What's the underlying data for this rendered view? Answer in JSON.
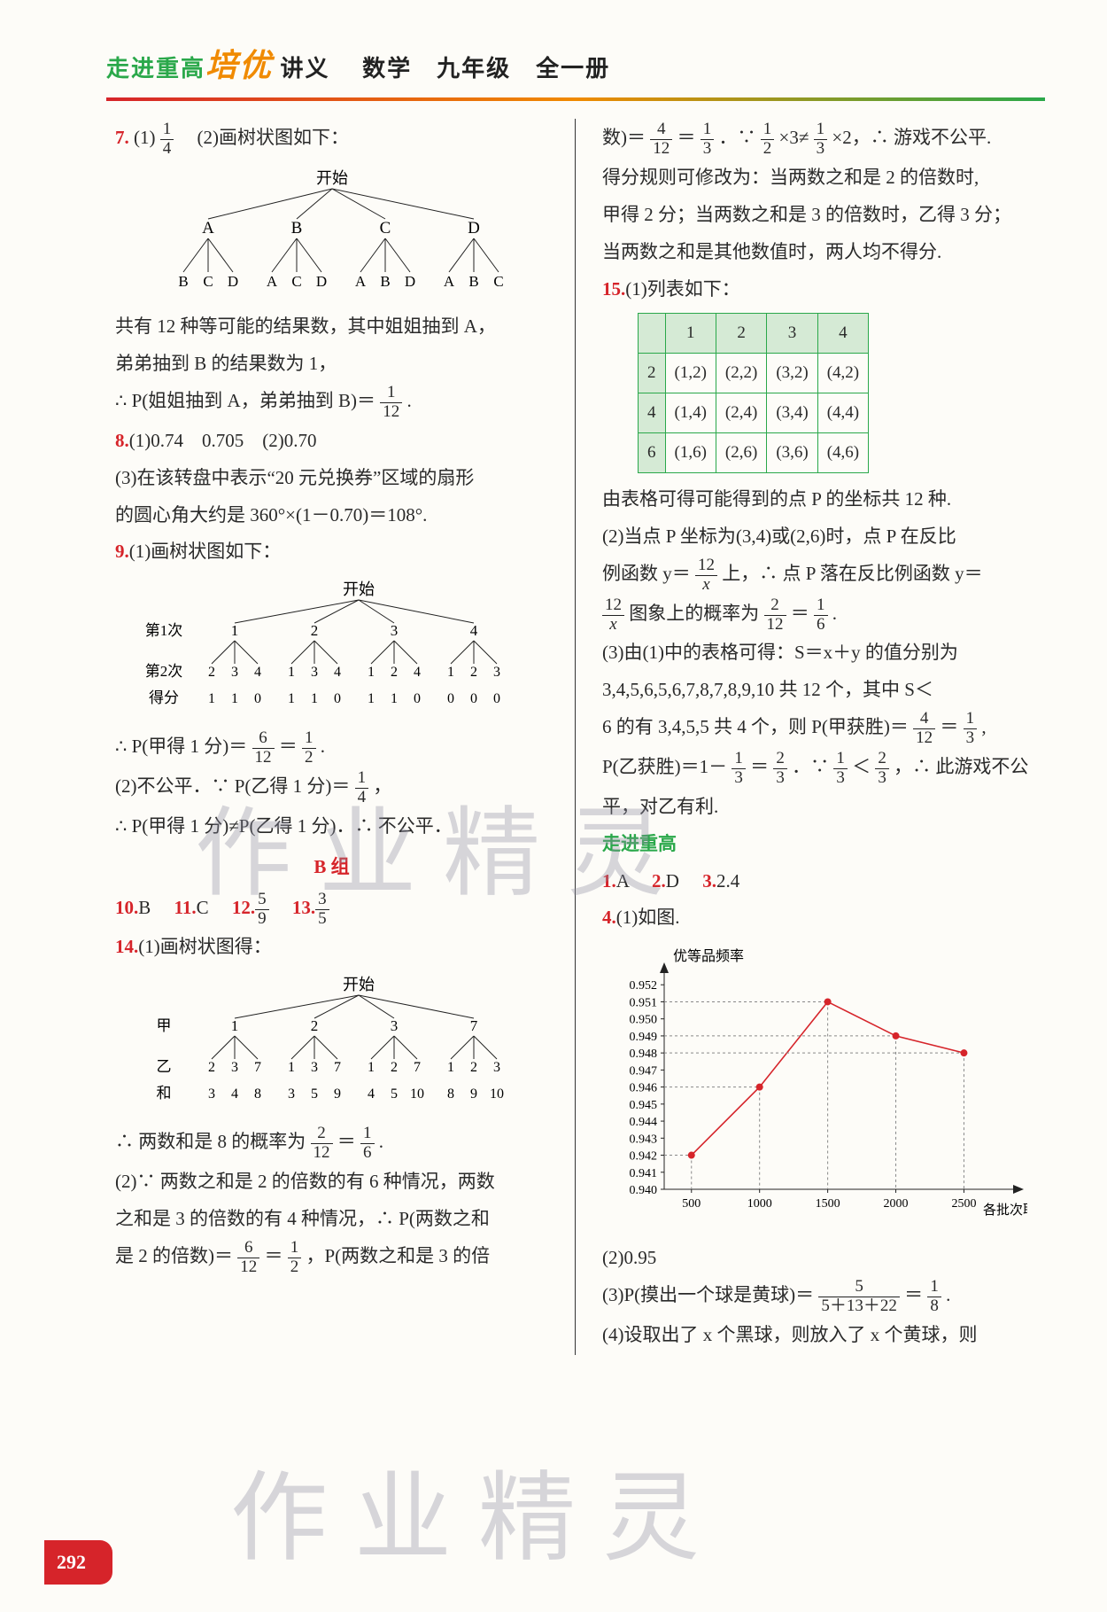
{
  "header": {
    "brand1": "走进重高",
    "brand2": "培优",
    "brand3": "讲义",
    "subject": "数学　九年级　全一册"
  },
  "left": {
    "q7": {
      "num": "7.",
      "p1": "(1)",
      "frac1": {
        "n": "1",
        "d": "4"
      },
      "p2": "　(2)画树状图如下：",
      "tree_root": "开始",
      "tree_l1": [
        "A",
        "B",
        "C",
        "D"
      ],
      "tree_l2": [
        "B",
        "C",
        "D",
        "A",
        "C",
        "D",
        "A",
        "B",
        "D",
        "A",
        "B",
        "C"
      ],
      "t1": "共有 12 种等可能的结果数，其中姐姐抽到 A，",
      "t2": "弟弟抽到 B 的结果数为 1，",
      "t3": "∴ P(姐姐抽到 A，弟弟抽到 B)＝",
      "frac2": {
        "n": "1",
        "d": "12"
      },
      "t3b": "."
    },
    "q8": {
      "num": "8.",
      "p": "(1)0.74　0.705　(2)0.70",
      "t1": "(3)在该转盘中表示“20 元兑换券”区域的扇形",
      "t2": "的圆心角大约是 360°×(1－0.70)＝108°."
    },
    "q9": {
      "num": "9.",
      "p": "(1)画树状图如下：",
      "tree_root": "开始",
      "row1_label": "第1次",
      "row1": [
        "1",
        "2",
        "3",
        "4"
      ],
      "row2_label": "第2次",
      "row2": [
        "2",
        "3",
        "4",
        "1",
        "3",
        "4",
        "1",
        "2",
        "4",
        "1",
        "2",
        "3"
      ],
      "row3_label": "得分",
      "row3": [
        "1",
        "1",
        "0",
        "1",
        "1",
        "0",
        "1",
        "1",
        "0",
        "0",
        "0",
        "0"
      ],
      "t1": "∴ P(甲得 1 分)＝",
      "frac1": {
        "n": "6",
        "d": "12"
      },
      "t1b": "＝",
      "frac2": {
        "n": "1",
        "d": "2"
      },
      "t1c": ".",
      "t2": "(2)不公平．∵ P(乙得 1 分)＝",
      "frac3": {
        "n": "1",
        "d": "4"
      },
      "t2b": "，",
      "t3": "∴ P(甲得 1 分)≠P(乙得 1 分)．∴ 不公平．"
    },
    "bgroup": "B 组",
    "q10": {
      "num": "10.",
      "ans": "B"
    },
    "q11": {
      "num": "11.",
      "ans": "C"
    },
    "q12": {
      "num": "12.",
      "frac": {
        "n": "5",
        "d": "9"
      }
    },
    "q13": {
      "num": "13.",
      "frac": {
        "n": "3",
        "d": "5"
      }
    },
    "q14": {
      "num": "14.",
      "p": "(1)画树状图得：",
      "tree_root": "开始",
      "row1_label": "甲",
      "row1": [
        "1",
        "2",
        "3",
        "7"
      ],
      "row2_label": "乙",
      "row2": [
        "2",
        "3",
        "7",
        "1",
        "3",
        "7",
        "1",
        "2",
        "7",
        "1",
        "2",
        "3"
      ],
      "row3_label": "和",
      "row3": [
        "3",
        "4",
        "8",
        "3",
        "5",
        "9",
        "4",
        "5",
        "10",
        "8",
        "9",
        "10"
      ],
      "t1": "∴ 两数和是 8 的概率为 ",
      "frac1": {
        "n": "2",
        "d": "12"
      },
      "t1b": "＝",
      "frac2": {
        "n": "1",
        "d": "6"
      },
      "t1c": ".",
      "t2": "(2)∵ 两数之和是 2 的倍数的有 6 种情况，两数",
      "t3": "之和是 3 的倍数的有 4 种情况，∴ P(两数之和",
      "t4": "是 2 的倍数)＝",
      "frac3": {
        "n": "6",
        "d": "12"
      },
      "t4b": "＝",
      "frac4": {
        "n": "1",
        "d": "2"
      },
      "t4c": "，P(两数之和是 3 的倍"
    }
  },
  "right": {
    "cont1": "数)＝",
    "fc1": {
      "n": "4",
      "d": "12"
    },
    "cont1b": "＝",
    "fc2": {
      "n": "1",
      "d": "3"
    },
    "cont1c": "．∵ ",
    "fc3": {
      "n": "1",
      "d": "2"
    },
    "cont1d": "×3≠",
    "fc4": {
      "n": "1",
      "d": "3"
    },
    "cont1e": "×2，∴ 游戏不公平.",
    "cont2": "得分规则可修改为：当两数之和是 2 的倍数时,",
    "cont3": "甲得 2 分；当两数之和是 3 的倍数时，乙得 3 分；",
    "cont4": "当两数之和是其他数值时，两人均不得分.",
    "q15": {
      "num": "15.",
      "p": "(1)列表如下："
    },
    "table": {
      "header": [
        "",
        "1",
        "2",
        "3",
        "4"
      ],
      "rows": [
        [
          "2",
          "(1,2)",
          "(2,2)",
          "(3,2)",
          "(4,2)"
        ],
        [
          "4",
          "(1,4)",
          "(2,4)",
          "(3,4)",
          "(4,4)"
        ],
        [
          "6",
          "(1,6)",
          "(2,6)",
          "(3,6)",
          "(4,6)"
        ]
      ]
    },
    "t1": "由表格可得可能得到的点 P 的坐标共 12 种.",
    "t2": "(2)当点 P 坐标为(3,4)或(2,6)时，点 P 在反比",
    "t3": "例函数 y＝",
    "fy": {
      "n": "12",
      "d": "x"
    },
    "t3b": " 上，∴ 点 P 落在反比例函数 y＝",
    "t4a": "",
    "fy2": {
      "n": "12",
      "d": "x"
    },
    "t4": " 图象上的概率为 ",
    "fp": {
      "n": "2",
      "d": "12"
    },
    "t4b": "＝",
    "fp2": {
      "n": "1",
      "d": "6"
    },
    "t4c": ".",
    "t5": "(3)由(1)中的表格可得：S＝x＋y 的值分别为",
    "t6": "3,4,5,6,5,6,7,8,7,8,9,10 共 12 个，其中 S＜",
    "t7": "6 的有 3,4,5,5 共 4 个，则 P(甲获胜)＝",
    "fp3": {
      "n": "4",
      "d": "12"
    },
    "t7b": "＝",
    "fp4": {
      "n": "1",
      "d": "3"
    },
    "t7c": ",",
    "t8": "P(乙获胜)＝1－",
    "fp5": {
      "n": "1",
      "d": "3"
    },
    "t8b": "＝",
    "fp6": {
      "n": "2",
      "d": "3"
    },
    "t8c": "．∵ ",
    "fp7": {
      "n": "1",
      "d": "3"
    },
    "t8d": "＜",
    "fp8": {
      "n": "2",
      "d": "3"
    },
    "t8e": "，∴ 此游戏不公",
    "t9": "平，对乙有利.",
    "section": "走进重高",
    "a1": {
      "num": "1.",
      "ans": "A"
    },
    "a2": {
      "num": "2.",
      "ans": "D"
    },
    "a3": {
      "num": "3.",
      "ans": "2.4"
    },
    "a4": {
      "num": "4.",
      "p": "(1)如图."
    },
    "chart": {
      "ylabel": "优等品频率",
      "xlabel": "各批次取球数",
      "yticks": [
        "0.952",
        "0.951",
        "0.950",
        "0.949",
        "0.948",
        "0.947",
        "0.946",
        "0.945",
        "0.944",
        "0.943",
        "0.942",
        "0.941",
        "0.940"
      ],
      "xticks": [
        "500",
        "1000",
        "1500",
        "2000",
        "2500"
      ],
      "points": [
        [
          500,
          0.942
        ],
        [
          1000,
          0.946
        ],
        [
          1500,
          0.951
        ],
        [
          2000,
          0.949
        ],
        [
          2500,
          0.948
        ]
      ],
      "point_color": "#d6242a",
      "line_color": "#d6242a",
      "axis_color": "#222",
      "grid": false,
      "ylim": [
        0.94,
        0.953
      ],
      "xlim": [
        300,
        2900
      ]
    },
    "b2": "(2)0.95",
    "b3": "(3)P(摸出一个球是黄球)＝",
    "fb1": {
      "n": "5",
      "d": "5＋13＋22"
    },
    "b3b": "＝",
    "fb2": {
      "n": "1",
      "d": "8"
    },
    "b3c": ".",
    "b4": "(4)设取出了 x 个黑球，则放入了 x 个黄球，则"
  },
  "pagenum": "292",
  "watermarks": {
    "w1": "作业精灵",
    "w2": "作业精灵"
  }
}
